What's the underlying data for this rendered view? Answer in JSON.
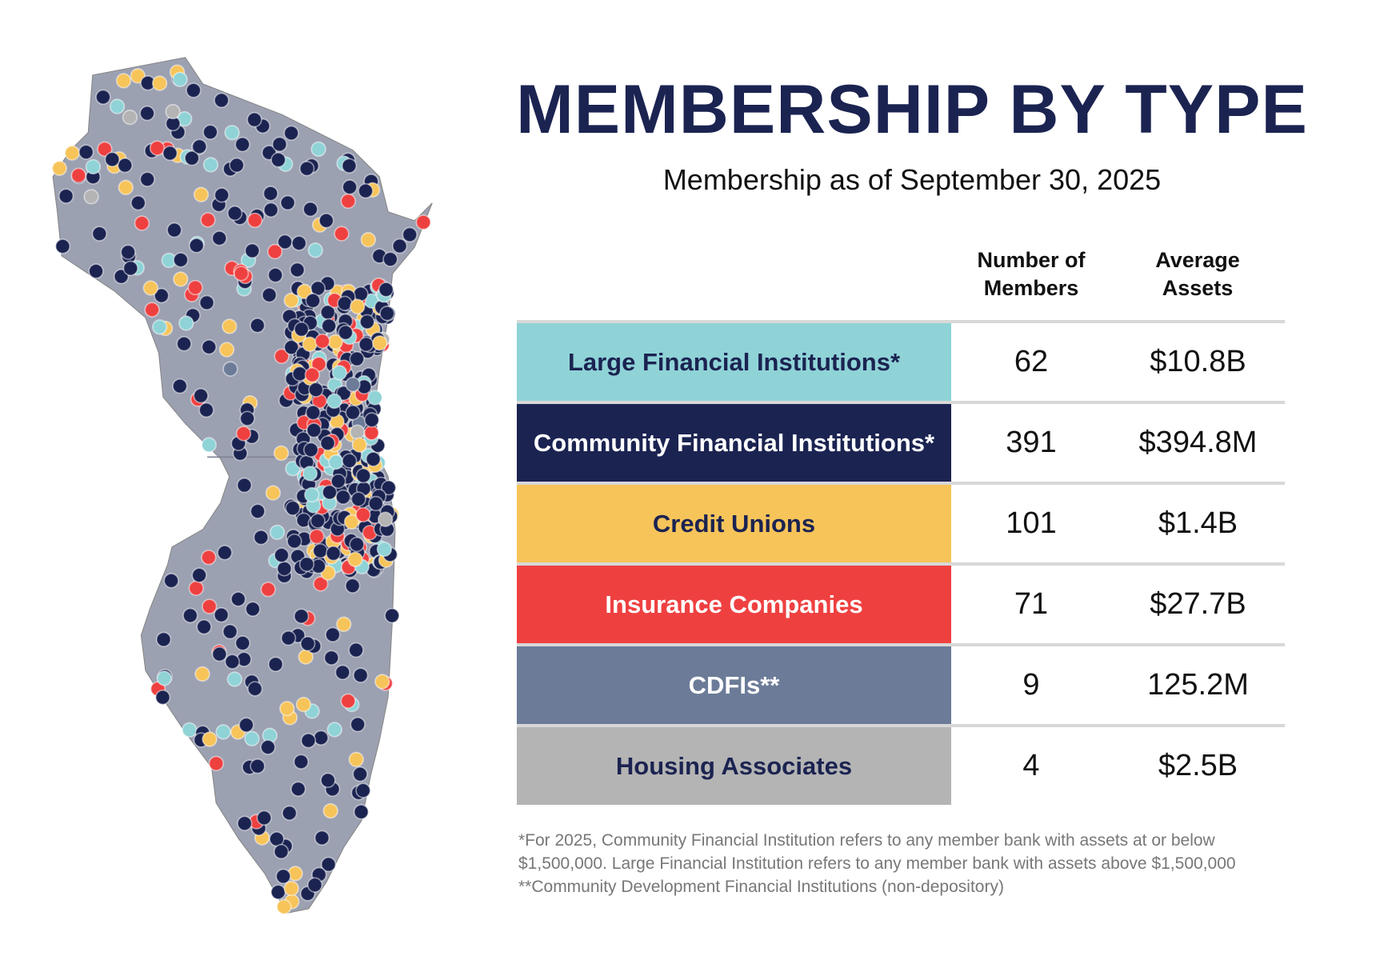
{
  "header": {
    "title": "MEMBERSHIP BY TYPE",
    "subtitle": "Membership as of September 30, 2025"
  },
  "table": {
    "columns": [
      "Number of Members",
      "Average Assets"
    ],
    "column_lines": [
      [
        "Number of",
        "Members"
      ],
      [
        "Average",
        "Assets"
      ]
    ],
    "rows": [
      {
        "label": "Large Financial Institutions*",
        "members": "62",
        "assets": "$10.8B",
        "color": "#8fd3d7",
        "text_color": "#1b2351"
      },
      {
        "label": "Community Financial Institutions*",
        "members": "391",
        "assets": "$394.8M",
        "color": "#1b2351",
        "text_color": "#ffffff"
      },
      {
        "label": "Credit Unions",
        "members": "101",
        "assets": "$1.4B",
        "color": "#f7c45a",
        "text_color": "#1b2351"
      },
      {
        "label": "Insurance Companies",
        "members": "71",
        "assets": "$27.7B",
        "color": "#ef4040",
        "text_color": "#ffffff"
      },
      {
        "label": "CDFIs**",
        "members": "9",
        "assets": "125.2M",
        "color": "#6b7b98",
        "text_color": "#ffffff"
      },
      {
        "label": "Housing Associates",
        "members": "4",
        "assets": "$2.5B",
        "color": "#b4b4b4",
        "text_color": "#1b2351"
      }
    ]
  },
  "notes": [
    "*For 2025, Community Financial Institution refers to any member bank with assets at or below",
    "$1,500,000. Large Financial Institution refers to any member bank with assets above $1,500,000",
    "**Community Development Financial Institutions (non-depository)"
  ],
  "map": {
    "fill": "#9ca1b2"
  }
}
